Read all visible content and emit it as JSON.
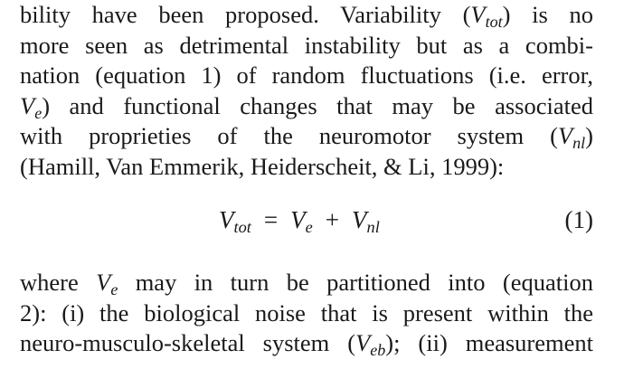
{
  "paragraph1": {
    "line1": [
      "bility have been proposed. Variability (",
      "V",
      "tot",
      ") is no"
    ],
    "line2": "more seen as detrimental instability but as a combi-",
    "line3": "nation (equation 1) of random fluctuations (i.e. error,",
    "line4": [
      "V",
      "e",
      ") and functional changes that may be associated"
    ],
    "line5": [
      "with proprieties of the neuromotor system (",
      "V",
      "nl",
      ")"
    ],
    "line6": "(Hamill, Van Emmerik, Heiderscheit, & Li, 1999):"
  },
  "equation": {
    "lhs_symbol": "V",
    "lhs_sub": "tot",
    "equals": "=",
    "term1_symbol": "V",
    "term1_sub": "e",
    "plus": "+",
    "term2_symbol": "V",
    "term2_sub": "nl",
    "number": "(1)"
  },
  "paragraph2": {
    "line1": [
      "where ",
      "V",
      "e",
      " may in turn be partitioned into (equation"
    ],
    "line2": "2): (i) the biological noise that is present within the",
    "line3": [
      "neuro-musculo-skeletal system (",
      "V",
      "eb",
      "); (ii) measurement"
    ]
  }
}
